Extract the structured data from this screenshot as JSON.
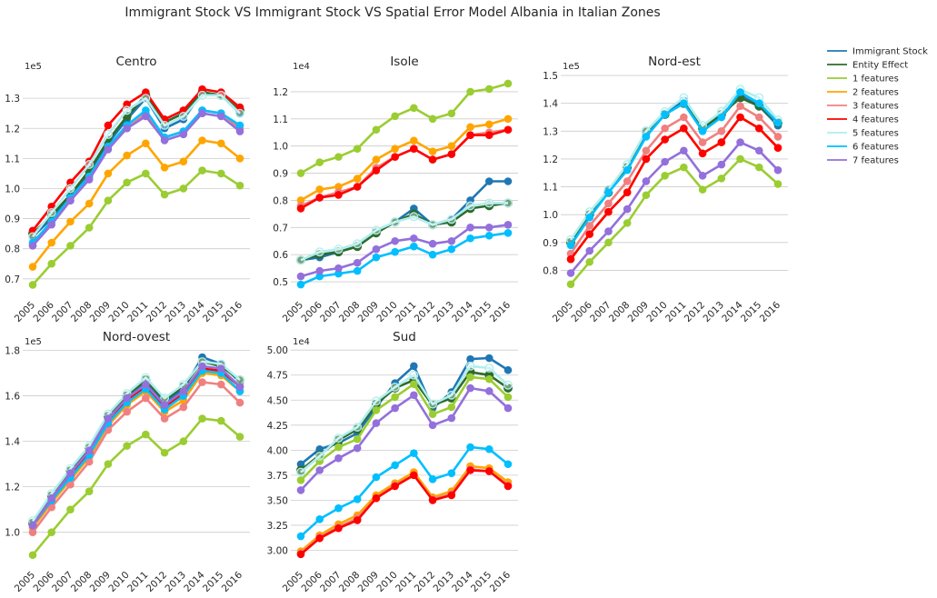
{
  "figure_title": "Immigrant Stock VS Immigrant Stock VS Spatial Error Model Albania in Italian Zones",
  "legend": [
    {
      "name": "Immigrant Stock",
      "color": "#1f77b4"
    },
    {
      "name": "Entity Effect",
      "color": "#2e6b2e"
    },
    {
      "name": "1 features",
      "color": "#9acd32"
    },
    {
      "name": "2 features",
      "color": "#ffa500"
    },
    {
      "name": "3 features",
      "color": "#f08080"
    },
    {
      "name": "4 features",
      "color": "#ff0000"
    },
    {
      "name": "5 features",
      "color": "#afeeee"
    },
    {
      "name": "6 features",
      "color": "#00bfff"
    },
    {
      "name": "7 features",
      "color": "#9370db"
    }
  ],
  "chart_data": [
    {
      "type": "line",
      "title": "Centro",
      "exponent_label": "1e5",
      "x": [
        "2005",
        "2006",
        "2007",
        "2008",
        "2009",
        "2010",
        "2011",
        "2012",
        "2013",
        "2014",
        "2015",
        "2016"
      ],
      "yticks": [
        0.7,
        0.8,
        0.9,
        1.0,
        1.1,
        1.2,
        1.3
      ],
      "ytick_labels": [
        "0.7",
        "0.8",
        "0.9",
        "1.0",
        "1.1",
        "1.2",
        "1.3"
      ],
      "ylim": [
        0.645,
        1.385
      ],
      "series": [
        {
          "name": "Immigrant Stock",
          "values": [
            0.84,
            0.9,
            0.97,
            1.05,
            1.15,
            1.23,
            1.3,
            1.2,
            1.23,
            1.32,
            1.31,
            1.25
          ]
        },
        {
          "name": "Entity Effect",
          "values": [
            0.85,
            0.91,
            0.98,
            1.06,
            1.16,
            1.24,
            1.31,
            1.22,
            1.25,
            1.32,
            1.31,
            1.26
          ]
        },
        {
          "name": "1 features",
          "values": [
            0.68,
            0.75,
            0.81,
            0.87,
            0.96,
            1.02,
            1.05,
            0.98,
            1.0,
            1.06,
            1.05,
            1.01
          ]
        },
        {
          "name": "2 features",
          "values": [
            0.74,
            0.82,
            0.89,
            0.95,
            1.05,
            1.11,
            1.15,
            1.07,
            1.09,
            1.16,
            1.15,
            1.1
          ]
        },
        {
          "name": "3 features",
          "values": [
            0.81,
            0.89,
            0.96,
            1.04,
            1.14,
            1.2,
            1.25,
            1.17,
            1.19,
            1.26,
            1.25,
            1.2
          ]
        },
        {
          "name": "4 features",
          "values": [
            0.86,
            0.94,
            1.02,
            1.09,
            1.21,
            1.28,
            1.32,
            1.23,
            1.26,
            1.33,
            1.32,
            1.27
          ]
        },
        {
          "name": "5 features",
          "values": [
            0.84,
            0.92,
            1.0,
            1.08,
            1.18,
            1.26,
            1.3,
            1.21,
            1.24,
            1.31,
            1.31,
            1.25
          ]
        },
        {
          "name": "6 features",
          "values": [
            0.82,
            0.89,
            0.97,
            1.04,
            1.14,
            1.21,
            1.26,
            1.17,
            1.19,
            1.26,
            1.25,
            1.21
          ]
        },
        {
          "name": "7 features",
          "values": [
            0.81,
            0.88,
            0.96,
            1.03,
            1.13,
            1.2,
            1.24,
            1.16,
            1.18,
            1.25,
            1.24,
            1.19
          ]
        }
      ]
    },
    {
      "type": "line",
      "title": "Isole",
      "exponent_label": "1e4",
      "x": [
        "2005",
        "2006",
        "2007",
        "2008",
        "2009",
        "2010",
        "2011",
        "2012",
        "2013",
        "2014",
        "2015",
        "2016"
      ],
      "yticks": [
        0.5,
        0.6,
        0.7,
        0.8,
        0.9,
        1.0,
        1.1,
        1.2
      ],
      "ytick_labels": [
        "0.5",
        "0.6",
        "0.7",
        "0.8",
        "0.9",
        "1.0",
        "1.1",
        "1.2"
      ],
      "ylim": [
        0.45,
        1.27
      ],
      "series": [
        {
          "name": "Immigrant Stock",
          "values": [
            0.58,
            0.59,
            0.61,
            0.63,
            0.68,
            0.72,
            0.77,
            0.71,
            0.73,
            0.8,
            0.87,
            0.87
          ]
        },
        {
          "name": "Entity Effect",
          "values": [
            0.58,
            0.6,
            0.61,
            0.63,
            0.68,
            0.72,
            0.75,
            0.71,
            0.72,
            0.77,
            0.78,
            0.79
          ]
        },
        {
          "name": "1 features",
          "values": [
            0.9,
            0.94,
            0.96,
            0.99,
            1.06,
            1.11,
            1.14,
            1.1,
            1.12,
            1.2,
            1.21,
            1.23
          ]
        },
        {
          "name": "2 features",
          "values": [
            0.8,
            0.84,
            0.85,
            0.88,
            0.95,
            0.99,
            1.02,
            0.98,
            1.0,
            1.07,
            1.08,
            1.1
          ]
        },
        {
          "name": "3 features",
          "values": [
            0.78,
            0.81,
            0.83,
            0.85,
            0.92,
            0.96,
            0.99,
            0.95,
            0.97,
            1.04,
            1.05,
            1.06
          ]
        },
        {
          "name": "4 features",
          "values": [
            0.77,
            0.81,
            0.82,
            0.85,
            0.91,
            0.96,
            0.99,
            0.95,
            0.97,
            1.04,
            1.04,
            1.06
          ]
        },
        {
          "name": "5 features",
          "values": [
            0.58,
            0.61,
            0.62,
            0.64,
            0.69,
            0.72,
            0.74,
            0.71,
            0.73,
            0.78,
            0.79,
            0.79
          ]
        },
        {
          "name": "6 features",
          "values": [
            0.49,
            0.52,
            0.53,
            0.54,
            0.59,
            0.61,
            0.63,
            0.6,
            0.62,
            0.66,
            0.67,
            0.68
          ]
        },
        {
          "name": "7 features",
          "values": [
            0.52,
            0.54,
            0.55,
            0.57,
            0.62,
            0.65,
            0.66,
            0.64,
            0.65,
            0.7,
            0.7,
            0.71
          ]
        }
      ]
    },
    {
      "type": "line",
      "title": "Nord-est",
      "exponent_label": "1e5",
      "x": [
        "2005",
        "2006",
        "2007",
        "2008",
        "2009",
        "2010",
        "2011",
        "2012",
        "2013",
        "2014",
        "2015",
        "2016"
      ],
      "yticks": [
        0.8,
        0.9,
        1.0,
        1.1,
        1.2,
        1.3,
        1.4,
        1.5
      ],
      "ytick_labels": [
        "0.8",
        "0.9",
        "1.0",
        "1.1",
        "1.2",
        "1.3",
        "1.4",
        "1.5"
      ],
      "ylim": [
        0.71,
        1.51
      ],
      "series": [
        {
          "name": "Immigrant Stock",
          "values": [
            0.9,
            1.0,
            1.09,
            1.17,
            1.29,
            1.36,
            1.41,
            1.31,
            1.35,
            1.43,
            1.39,
            1.32
          ]
        },
        {
          "name": "Entity Effect",
          "values": [
            0.9,
            1.0,
            1.08,
            1.17,
            1.3,
            1.36,
            1.4,
            1.31,
            1.36,
            1.42,
            1.39,
            1.33
          ]
        },
        {
          "name": "1 features",
          "values": [
            0.75,
            0.83,
            0.9,
            0.97,
            1.07,
            1.14,
            1.17,
            1.09,
            1.13,
            1.2,
            1.17,
            1.11
          ]
        },
        {
          "name": "2 features",
          "values": [
            0.84,
            0.93,
            1.01,
            1.08,
            1.2,
            1.27,
            1.31,
            1.22,
            1.26,
            1.35,
            1.31,
            1.24
          ]
        },
        {
          "name": "3 features",
          "values": [
            0.86,
            0.96,
            1.04,
            1.12,
            1.23,
            1.31,
            1.35,
            1.26,
            1.3,
            1.39,
            1.35,
            1.28
          ]
        },
        {
          "name": "4 features",
          "values": [
            0.84,
            0.93,
            1.01,
            1.08,
            1.2,
            1.27,
            1.31,
            1.22,
            1.26,
            1.35,
            1.31,
            1.24
          ]
        },
        {
          "name": "5 features",
          "values": [
            0.91,
            1.01,
            1.09,
            1.18,
            1.3,
            1.37,
            1.42,
            1.32,
            1.37,
            1.45,
            1.42,
            1.34
          ]
        },
        {
          "name": "6 features",
          "values": [
            0.89,
            0.99,
            1.08,
            1.16,
            1.28,
            1.36,
            1.4,
            1.3,
            1.35,
            1.44,
            1.4,
            1.33
          ]
        },
        {
          "name": "7 features",
          "values": [
            0.79,
            0.87,
            0.94,
            1.02,
            1.12,
            1.19,
            1.23,
            1.14,
            1.18,
            1.26,
            1.23,
            1.16
          ]
        }
      ]
    },
    {
      "type": "line",
      "title": "Nord-ovest",
      "exponent_label": "1e5",
      "x": [
        "2005",
        "2006",
        "2007",
        "2008",
        "2009",
        "2010",
        "2011",
        "2012",
        "2013",
        "2014",
        "2015",
        "2016"
      ],
      "yticks": [
        1.0,
        1.2,
        1.4,
        1.6,
        1.8
      ],
      "ytick_labels": [
        "1.0",
        "1.2",
        "1.4",
        "1.6",
        "1.8"
      ],
      "ylim": [
        0.855,
        1.81
      ],
      "series": [
        {
          "name": "Immigrant Stock",
          "values": [
            1.04,
            1.16,
            1.26,
            1.36,
            1.5,
            1.59,
            1.66,
            1.57,
            1.63,
            1.77,
            1.74,
            1.66
          ]
        },
        {
          "name": "Entity Effect",
          "values": [
            1.04,
            1.16,
            1.27,
            1.37,
            1.51,
            1.6,
            1.67,
            1.58,
            1.64,
            1.75,
            1.73,
            1.67
          ]
        },
        {
          "name": "1 features",
          "values": [
            0.9,
            1.0,
            1.1,
            1.18,
            1.3,
            1.38,
            1.43,
            1.35,
            1.4,
            1.5,
            1.49,
            1.42
          ]
        },
        {
          "name": "2 features",
          "values": [
            1.02,
            1.13,
            1.23,
            1.33,
            1.47,
            1.56,
            1.62,
            1.53,
            1.58,
            1.7,
            1.69,
            1.62
          ]
        },
        {
          "name": "3 features",
          "values": [
            1.0,
            1.11,
            1.21,
            1.31,
            1.45,
            1.53,
            1.59,
            1.5,
            1.55,
            1.66,
            1.65,
            1.57
          ]
        },
        {
          "name": "4 features",
          "values": [
            1.03,
            1.14,
            1.25,
            1.35,
            1.48,
            1.58,
            1.64,
            1.55,
            1.61,
            1.72,
            1.71,
            1.64
          ]
        },
        {
          "name": "5 features",
          "values": [
            1.05,
            1.17,
            1.28,
            1.38,
            1.52,
            1.61,
            1.68,
            1.59,
            1.65,
            1.75,
            1.74,
            1.67
          ]
        },
        {
          "name": "6 features",
          "values": [
            1.03,
            1.14,
            1.24,
            1.34,
            1.48,
            1.57,
            1.63,
            1.54,
            1.6,
            1.71,
            1.7,
            1.62
          ]
        },
        {
          "name": "7 features",
          "values": [
            1.03,
            1.15,
            1.26,
            1.36,
            1.5,
            1.59,
            1.65,
            1.56,
            1.62,
            1.73,
            1.72,
            1.64
          ]
        }
      ]
    },
    {
      "type": "line",
      "title": "Sud",
      "exponent_label": "1e4",
      "x": [
        "2005",
        "2006",
        "2007",
        "2008",
        "2009",
        "2010",
        "2011",
        "2012",
        "2013",
        "2014",
        "2015",
        "2016"
      ],
      "yticks": [
        3.0,
        3.25,
        3.5,
        3.75,
        4.0,
        4.25,
        4.5,
        4.75,
        5.0
      ],
      "ytick_labels": [
        "3.00",
        "3.25",
        "3.50",
        "3.75",
        "4.00",
        "4.25",
        "4.50",
        "4.75",
        "5.00"
      ],
      "ylim": [
        2.85,
        5.02
      ],
      "series": [
        {
          "name": "Immigrant Stock",
          "values": [
            3.86,
            4.01,
            4.07,
            4.17,
            4.43,
            4.67,
            4.84,
            4.42,
            4.58,
            4.91,
            4.92,
            4.8
          ]
        },
        {
          "name": "Entity Effect",
          "values": [
            3.8,
            3.95,
            4.1,
            4.21,
            4.46,
            4.62,
            4.7,
            4.45,
            4.52,
            4.78,
            4.75,
            4.62
          ]
        },
        {
          "name": "1 features",
          "values": [
            3.7,
            3.89,
            4.03,
            4.11,
            4.4,
            4.53,
            4.66,
            4.36,
            4.43,
            4.73,
            4.71,
            4.53
          ]
        },
        {
          "name": "2 features",
          "values": [
            2.99,
            3.15,
            3.26,
            3.35,
            3.55,
            3.67,
            3.78,
            3.53,
            3.59,
            3.84,
            3.82,
            3.68
          ]
        },
        {
          "name": "3 features",
          "values": [
            2.97,
            3.13,
            3.23,
            3.32,
            3.52,
            3.65,
            3.75,
            3.51,
            3.56,
            3.81,
            3.79,
            3.65
          ]
        },
        {
          "name": "4 features",
          "values": [
            2.96,
            3.12,
            3.22,
            3.3,
            3.52,
            3.64,
            3.75,
            3.5,
            3.55,
            3.8,
            3.79,
            3.64
          ]
        },
        {
          "name": "5 features",
          "values": [
            3.78,
            3.94,
            4.12,
            4.23,
            4.49,
            4.63,
            4.75,
            4.46,
            4.55,
            4.84,
            4.82,
            4.65
          ]
        },
        {
          "name": "6 features",
          "values": [
            3.14,
            3.31,
            3.42,
            3.51,
            3.73,
            3.85,
            3.97,
            3.71,
            3.77,
            4.03,
            4.01,
            3.86
          ]
        },
        {
          "name": "7 features",
          "values": [
            3.6,
            3.8,
            3.92,
            4.02,
            4.27,
            4.42,
            4.55,
            4.25,
            4.32,
            4.62,
            4.59,
            4.42
          ]
        }
      ]
    }
  ]
}
